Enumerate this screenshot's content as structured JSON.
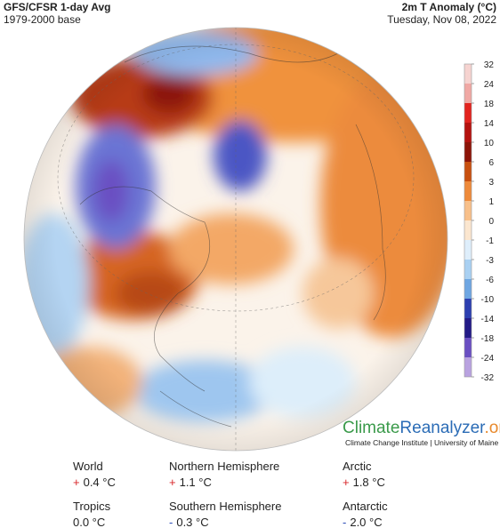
{
  "header": {
    "title": "GFS/CFSR 1-day Avg",
    "subtitle": "1979-2000 base",
    "variable": "2m T Anomaly (°C)",
    "date": "Tuesday, Nov 08, 2022"
  },
  "colorbar": {
    "labels": [
      "32",
      "24",
      "18",
      "14",
      "10",
      "6",
      "3",
      "1",
      "0",
      "-1",
      "-3",
      "-6",
      "-10",
      "-14",
      "-18",
      "-24",
      "-32"
    ],
    "colors": [
      "#f6d3d0",
      "#f0a8a4",
      "#e2231e",
      "#b4120f",
      "#8c1408",
      "#c8500f",
      "#ee8a3a",
      "#f8c08a",
      "#fbe6cf",
      "#deeefb",
      "#a9d0f2",
      "#6ea6e2",
      "#2c3fb0",
      "#221a86",
      "#6a4fc2",
      "#b9a2e0"
    ]
  },
  "logo": {
    "part1": "Climate",
    "part2": "Reanalyzer",
    "part3": ".org",
    "credit": "Climate Change Institute | University of Maine"
  },
  "stats": [
    {
      "label": "World",
      "sign": "+",
      "value": "0.4 °C"
    },
    {
      "label": "Northern Hemisphere",
      "sign": "+",
      "value": "1.1 °C"
    },
    {
      "label": "Arctic",
      "sign": "+",
      "value": "1.8 °C"
    },
    {
      "label": "Tropics",
      "value": "0.0 °C"
    },
    {
      "label": "Southern Hemisphere",
      "sign": "-",
      "value": "0.3 °C"
    },
    {
      "label": "Antarctic",
      "sign": "-",
      "value": "2.0 °C"
    }
  ]
}
